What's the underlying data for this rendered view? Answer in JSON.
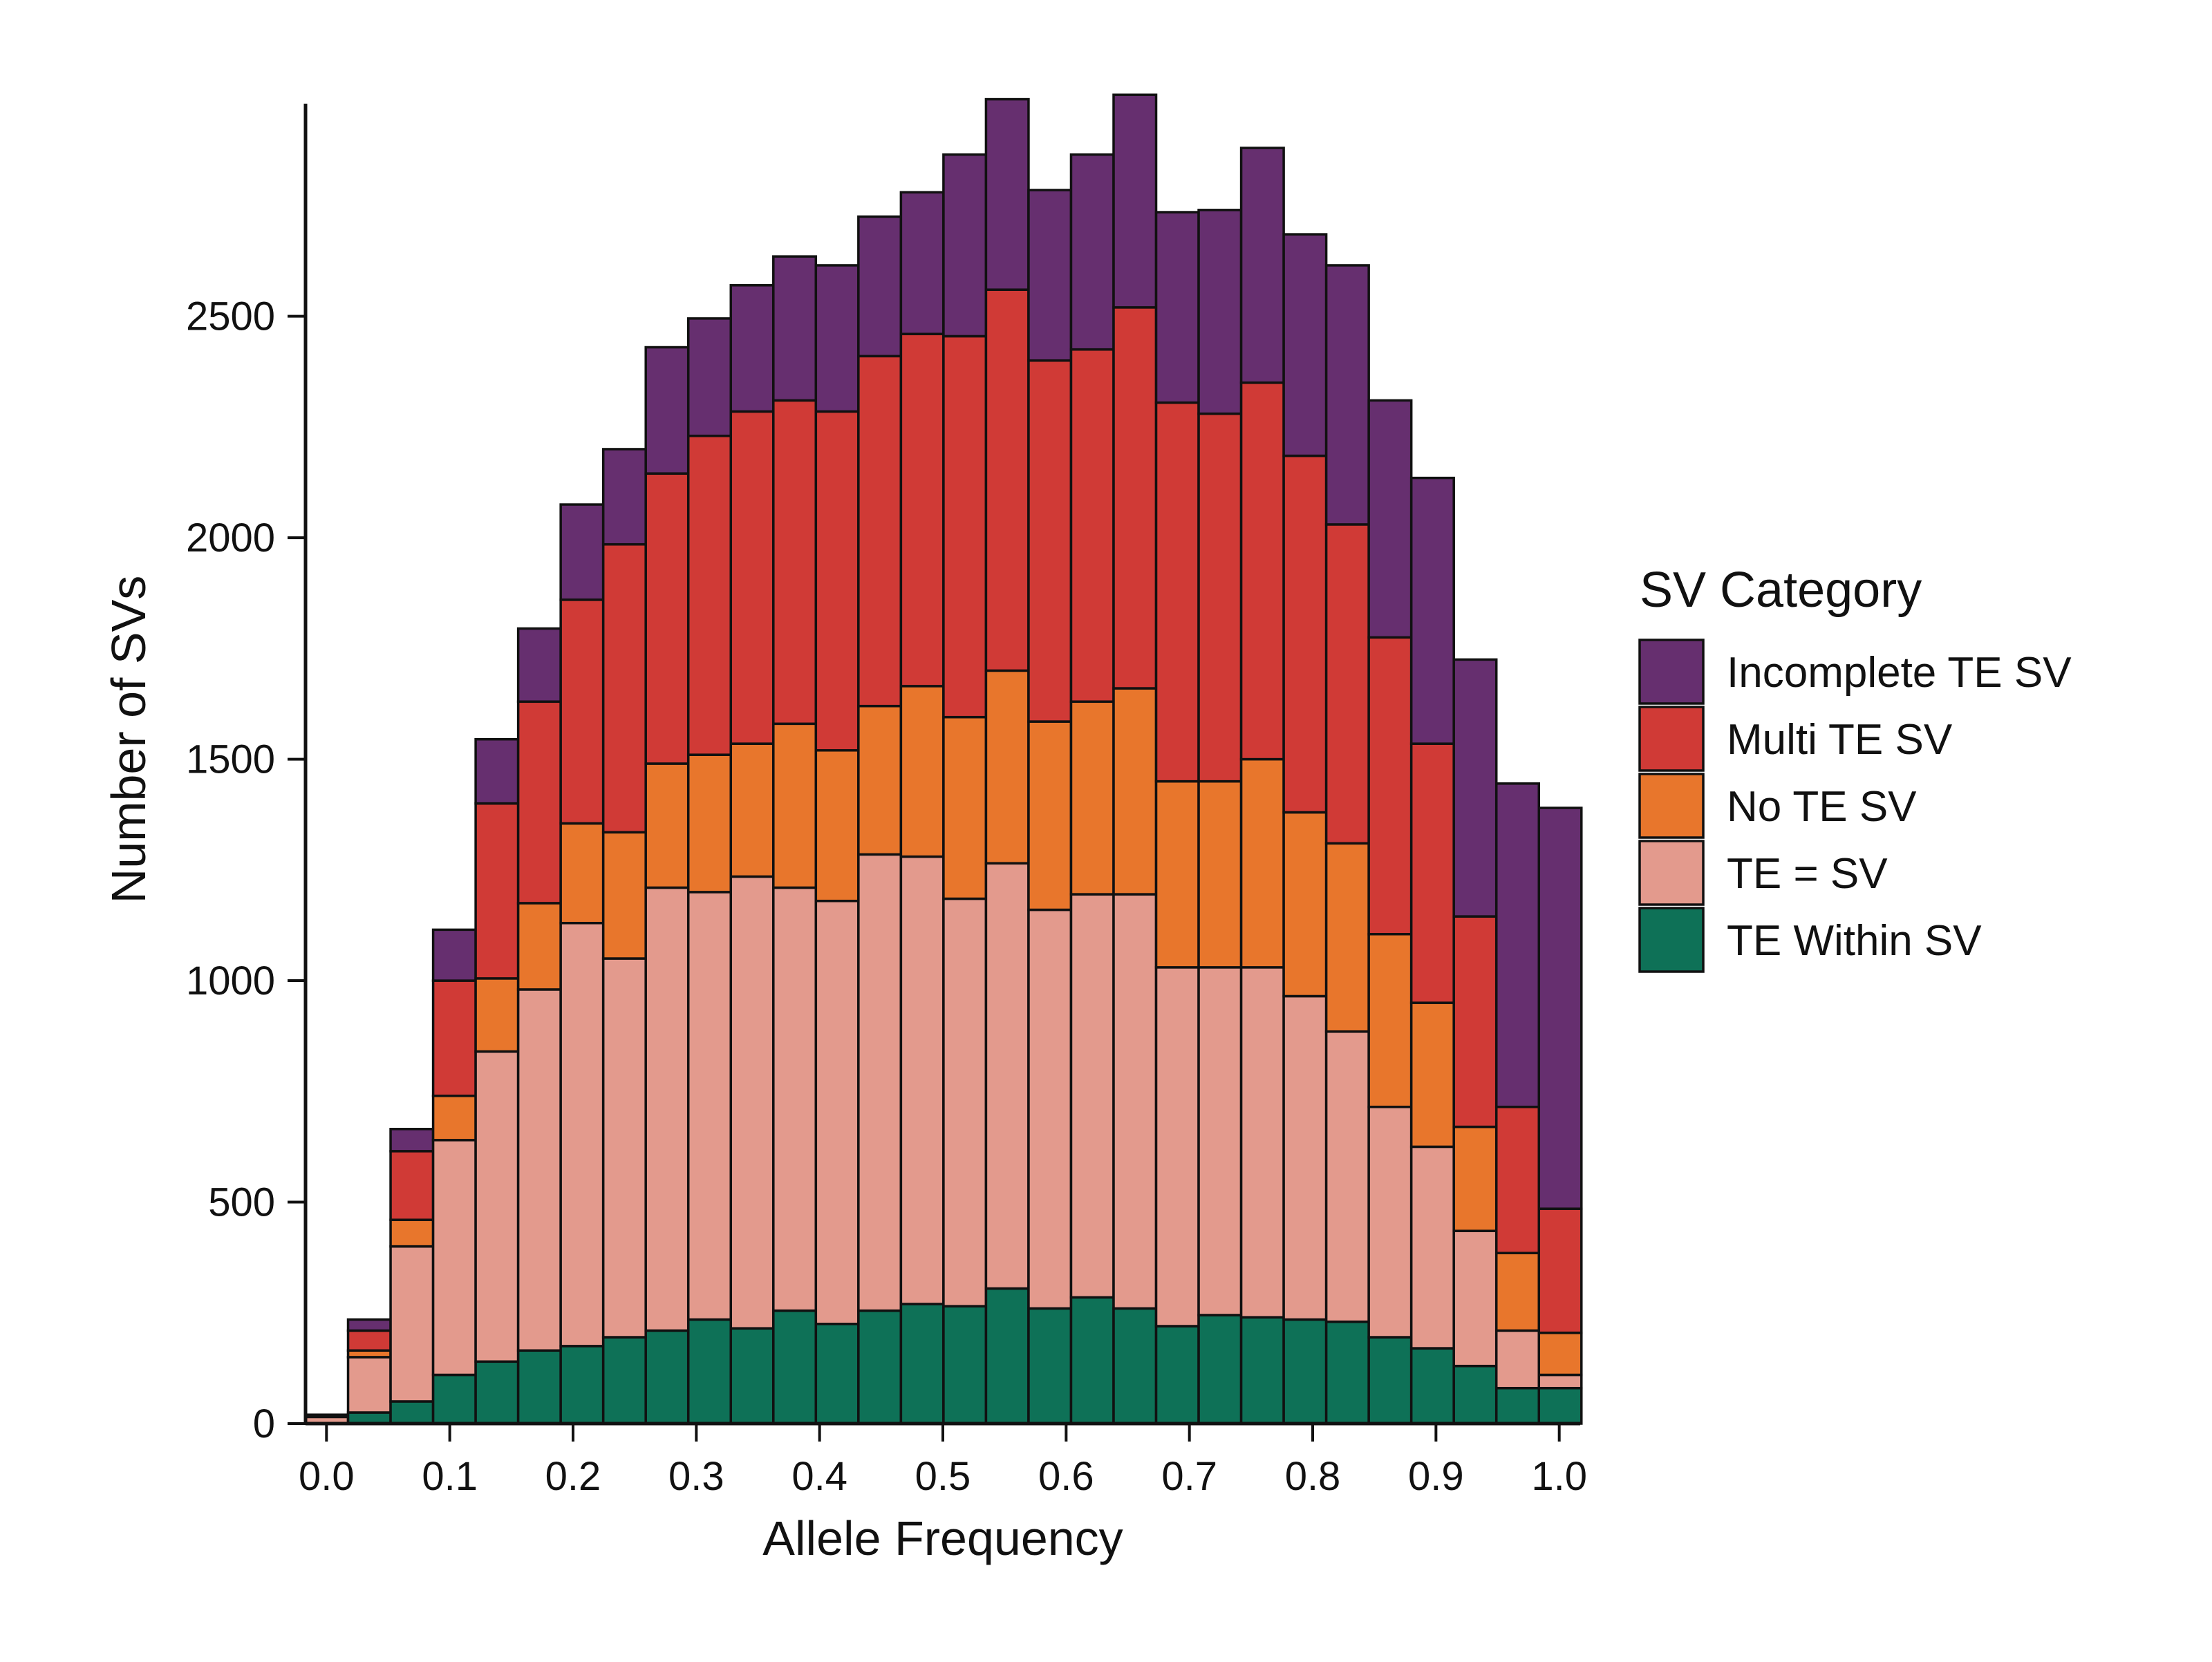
{
  "chart_data": {
    "type": "bar",
    "stacked": true,
    "xlabel": "Allele Frequency",
    "ylabel": "Number of SVs",
    "xlim": [
      -0.017,
      1.017
    ],
    "ylim": [
      0,
      2980
    ],
    "x_ticks": [
      "0.0",
      "0.1",
      "0.2",
      "0.3",
      "0.4",
      "0.5",
      "0.6",
      "0.7",
      "0.8",
      "0.9",
      "1.0"
    ],
    "y_ticks": [
      "0",
      "500",
      "1000",
      "1500",
      "2000",
      "2500"
    ],
    "bin_width": 0.0345,
    "bins_start": [
      -0.017,
      0.0175,
      0.052,
      0.0865,
      0.121,
      0.1555,
      0.19,
      0.2245,
      0.259,
      0.2935,
      0.328,
      0.3625,
      0.397,
      0.4315,
      0.466,
      0.5005,
      0.535,
      0.5695,
      0.604,
      0.6385,
      0.673,
      0.7075,
      0.742,
      0.7765,
      0.811,
      0.8455,
      0.88,
      0.9145,
      0.949,
      0.9835
    ],
    "grid": false,
    "legend": {
      "title": "SV Category",
      "position": "right",
      "order": [
        "Incomplete TE SV",
        "Multi TE SV",
        "No TE SV",
        "TE = SV",
        "TE Within SV"
      ]
    },
    "series": [
      {
        "name": "TE Within SV",
        "color": "#0e7157",
        "values": [
          0,
          25,
          50,
          110,
          140,
          165,
          175,
          195,
          210,
          235,
          215,
          255,
          225,
          255,
          270,
          265,
          305,
          260,
          285,
          260,
          220,
          245,
          240,
          235,
          230,
          195,
          170,
          130,
          80,
          80
        ]
      },
      {
        "name": "TE = SV",
        "color": "#e39a8d",
        "values": [
          15,
          125,
          350,
          530,
          700,
          815,
          955,
          855,
          1000,
          965,
          1020,
          955,
          955,
          1030,
          1010,
          920,
          960,
          900,
          910,
          935,
          810,
          785,
          790,
          730,
          655,
          520,
          455,
          305,
          130,
          30
        ]
      },
      {
        "name": "No TE SV",
        "color": "#e8762c",
        "values": [
          0,
          15,
          60,
          100,
          165,
          195,
          225,
          285,
          280,
          310,
          300,
          370,
          340,
          335,
          385,
          410,
          435,
          425,
          435,
          465,
          420,
          420,
          470,
          415,
          425,
          390,
          325,
          235,
          175,
          95
        ]
      },
      {
        "name": "Multi TE SV",
        "color": "#d03a36",
        "values": [
          0,
          45,
          155,
          260,
          395,
          455,
          505,
          650,
          655,
          720,
          750,
          730,
          765,
          790,
          795,
          860,
          860,
          815,
          795,
          860,
          855,
          830,
          850,
          805,
          720,
          670,
          585,
          475,
          330,
          280
        ]
      },
      {
        "name": "Incomplete TE SV",
        "color": "#662f6f",
        "values": [
          5,
          25,
          50,
          115,
          145,
          165,
          215,
          215,
          285,
          265,
          285,
          325,
          330,
          315,
          320,
          410,
          430,
          385,
          440,
          480,
          430,
          460,
          530,
          500,
          585,
          535,
          600,
          580,
          730,
          905
        ]
      }
    ]
  }
}
